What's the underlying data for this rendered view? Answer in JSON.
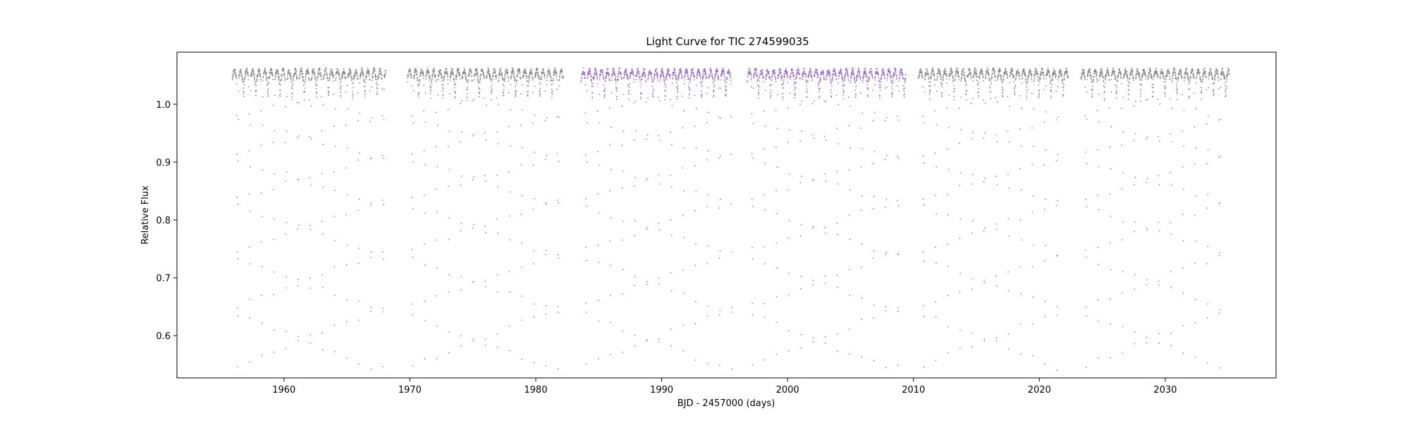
{
  "chart_data": {
    "type": "scatter",
    "title": "Light Curve for TIC 274599035",
    "xlabel": "BJD - 2457000 (days)",
    "ylabel": "Relative Flux",
    "xlim": [
      1951.5,
      2038.8
    ],
    "ylim": [
      0.527,
      1.09
    ],
    "xticks": [
      1960,
      1970,
      1980,
      1990,
      2000,
      2010,
      2020,
      2030
    ],
    "yticks": [
      0.6,
      0.7,
      0.8,
      0.9,
      1.0
    ],
    "grid": false,
    "legend": "none",
    "eclipse_period_days": 0.9635,
    "eclipse_depth_flux": 0.56,
    "max_flux": 1.06,
    "series": [
      {
        "color": "#808080",
        "segments": [
          [
            1955.9,
            1968.1
          ],
          [
            1969.8,
            1982.2
          ],
          [
            2010.4,
            2022.3
          ],
          [
            2023.3,
            2035.1
          ]
        ]
      },
      {
        "color": "#9467bd",
        "segments": [
          [
            1983.6,
            1995.6
          ],
          [
            1996.8,
            2009.4
          ]
        ]
      }
    ]
  }
}
